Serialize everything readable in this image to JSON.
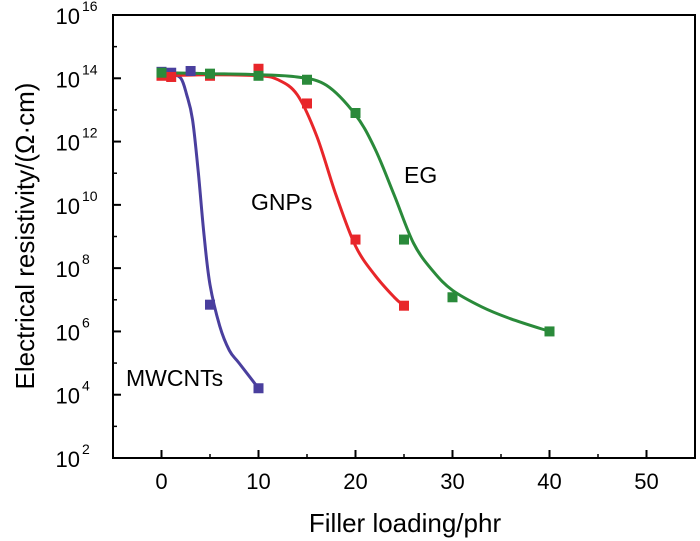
{
  "chart_data": {
    "type": "scatter",
    "title": "",
    "xlabel": "Filler loading/phr",
    "ylabel": "Electrical resistivity/(Ω·cm)",
    "xlim": [
      -5,
      55
    ],
    "ylim": [
      100,
      1e+16
    ],
    "yscale": "log",
    "x_ticks": [
      0,
      10,
      20,
      30,
      40,
      50
    ],
    "x_tick_labels": [
      "0",
      "10",
      "20",
      "30",
      "40",
      "50"
    ],
    "y_ticks": [
      2,
      4,
      6,
      8,
      10,
      12,
      14,
      16
    ],
    "y_tick_labels": [
      {
        "base": "10",
        "exp": "2"
      },
      {
        "base": "10",
        "exp": "4"
      },
      {
        "base": "10",
        "exp": "6"
      },
      {
        "base": "10",
        "exp": "8"
      },
      {
        "base": "10",
        "exp": "10"
      },
      {
        "base": "10",
        "exp": "12"
      },
      {
        "base": "10",
        "exp": "14"
      },
      {
        "base": "10",
        "exp": "16"
      }
    ],
    "grid": false,
    "series": [
      {
        "name": "MWCNTs",
        "color": "#4a3f9e",
        "x": [
          0,
          1,
          3,
          5,
          10
        ],
        "values": [
          160000000000000.0,
          150000000000000.0,
          170000000000000.0,
          7000000.0,
          16000.0
        ],
        "fit_x": [
          0,
          1,
          2,
          2.6,
          3.2,
          3.8,
          4.4,
          5,
          6,
          7,
          8,
          10
        ],
        "fit_values": [
          150000000000000.0,
          140000000000000.0,
          100000000000000.0,
          30000000000000.0,
          5000000000000.0,
          100000000000.0,
          1000000000.0,
          30000000.0,
          1500000.0,
          250000.0,
          100000.0,
          16000.0
        ]
      },
      {
        "name": "GNPs",
        "color": "#e8262a",
        "x": [
          0,
          1,
          5,
          10,
          15,
          20,
          25
        ],
        "values": [
          120000000000000.0,
          110000000000000.0,
          120000000000000.0,
          200000000000000.0,
          16000000000000.0,
          800000000.0,
          6500000.0
        ],
        "fit_x": [
          0,
          5,
          10,
          12,
          14,
          16,
          18,
          20,
          22,
          24,
          25
        ],
        "fit_values": [
          120000000000000.0,
          130000000000000.0,
          120000000000000.0,
          90000000000000.0,
          30000000000000.0,
          1500000000000.0,
          20000000000.0,
          500000000.0,
          60000000.0,
          12000000.0,
          6500000.0
        ]
      },
      {
        "name": "EG",
        "color": "#2a8a3a",
        "x": [
          0,
          5,
          10,
          15,
          20,
          25,
          30,
          40
        ],
        "values": [
          150000000000000.0,
          140000000000000.0,
          120000000000000.0,
          90000000000000.0,
          8000000000000.0,
          800000000.0,
          12000000.0,
          1000000.0
        ],
        "fit_x": [
          0,
          5,
          10,
          14,
          17,
          20,
          22,
          24,
          26,
          28,
          30,
          33,
          36,
          40
        ],
        "fit_values": [
          150000000000000.0,
          140000000000000.0,
          130000000000000.0,
          110000000000000.0,
          60000000000000.0,
          7000000000000.0,
          600000000000.0,
          20000000000.0,
          600000000.0,
          80000000.0,
          20000000.0,
          6000000.0,
          2500000.0,
          1000000.0
        ]
      }
    ],
    "annotations": [
      {
        "text": "MWCNTs",
        "series": "MWCNTs"
      },
      {
        "text": "GNPs",
        "series": "GNPs"
      },
      {
        "text": "EG",
        "series": "EG"
      }
    ]
  }
}
